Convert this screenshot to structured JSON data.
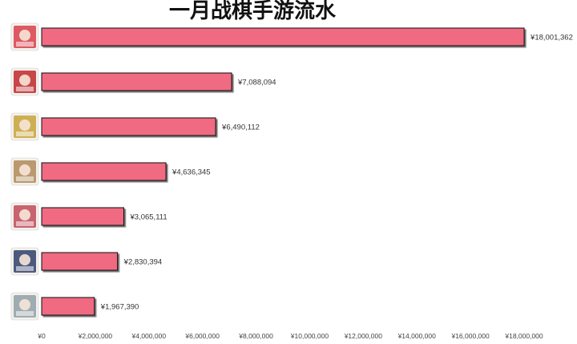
{
  "chart_data": {
    "type": "bar",
    "orientation": "horizontal",
    "title": "一月战棋手游流水",
    "xlabel": "",
    "ylabel": "",
    "xlim": [
      0,
      18500000
    ],
    "grid": false,
    "currency_symbol": "¥",
    "bar_color": "#f06a82",
    "bar_edge_color": "#111111",
    "bars": [
      {
        "icon": "anime-girl-white-hair-red-icon",
        "icon_color": "#d8404a",
        "value": 18001362,
        "value_label": "¥18,001,362"
      },
      {
        "icon": "sanguo-red-game-icon",
        "icon_color": "#c0282c",
        "value": 7088094,
        "value_label": "¥7,088,094"
      },
      {
        "icon": "sanguozhi-zhanqiban-icon",
        "icon_color": "#c7a53a",
        "value": 6490112,
        "value_label": "¥6,490,112"
      },
      {
        "icon": "blonde-character-portrait-icon",
        "icon_color": "#b08a5a",
        "value": 4636345,
        "value_label": "¥4,636,345"
      },
      {
        "icon": "white-hair-red-character-icon",
        "icon_color": "#c04a5a",
        "value": 3065111,
        "value_label": "¥3,065,111"
      },
      {
        "icon": "dark-blue-character-icon",
        "icon_color": "#2f3f6a",
        "value": 2830394,
        "value_label": "¥2,830,394"
      },
      {
        "icon": "snowy-landscape-character-icon",
        "icon_color": "#8fa0a8",
        "value": 1967390,
        "value_label": "¥1,967,390"
      }
    ],
    "x_ticks": [
      {
        "value": 0,
        "label": "¥0"
      },
      {
        "value": 2000000,
        "label": "¥2,000,000"
      },
      {
        "value": 4000000,
        "label": "¥4,000,000"
      },
      {
        "value": 6000000,
        "label": "¥6,000,000"
      },
      {
        "value": 8000000,
        "label": "¥8,000,000"
      },
      {
        "value": 10000000,
        "label": "¥10,000,000"
      },
      {
        "value": 12000000,
        "label": "¥12,000,000"
      },
      {
        "value": 14000000,
        "label": "¥14,000,000"
      },
      {
        "value": 16000000,
        "label": "¥16,000,000"
      },
      {
        "value": 18000000,
        "label": "¥18,000,000"
      }
    ]
  }
}
